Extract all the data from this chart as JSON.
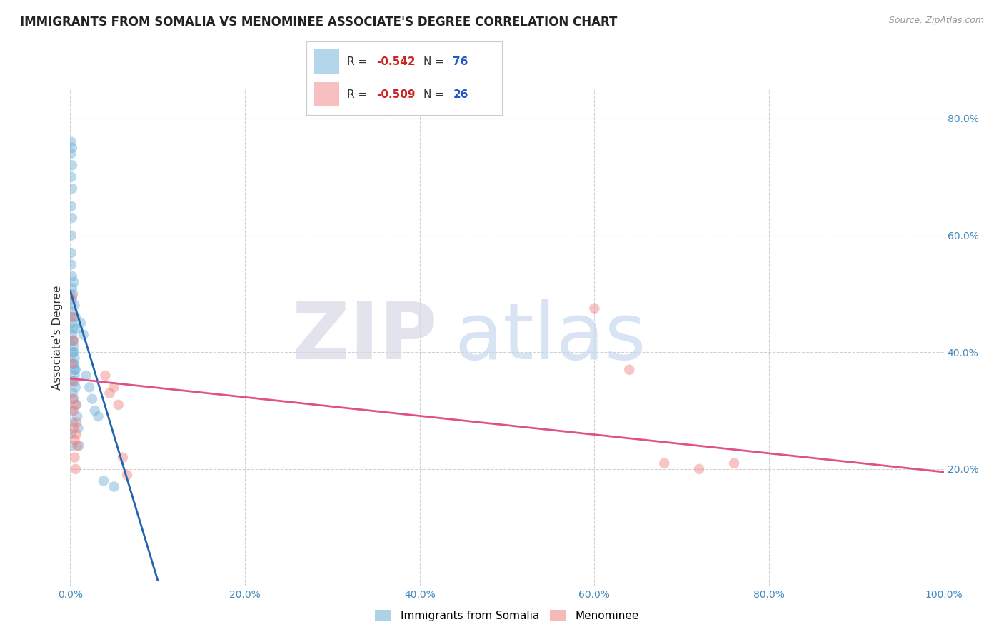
{
  "title": "IMMIGRANTS FROM SOMALIA VS MENOMINEE ASSOCIATE'S DEGREE CORRELATION CHART",
  "source": "Source: ZipAtlas.com",
  "ylabel": "Associate's Degree",
  "blue_scatter_x": [
    0.003,
    0.004,
    0.005,
    0.006,
    0.007,
    0.003,
    0.004,
    0.005,
    0.006,
    0.002,
    0.003,
    0.004,
    0.005,
    0.002,
    0.003,
    0.004,
    0.002,
    0.003,
    0.001,
    0.002,
    0.001,
    0.002,
    0.001,
    0.002,
    0.001,
    0.002,
    0.001,
    0.002,
    0.001,
    0.001,
    0.001,
    0.012,
    0.015,
    0.018,
    0.022,
    0.025,
    0.028,
    0.032,
    0.038,
    0.05,
    0.001,
    0.001,
    0.001,
    0.002,
    0.002,
    0.002,
    0.003,
    0.003,
    0.004,
    0.004,
    0.005,
    0.005,
    0.006,
    0.007,
    0.008,
    0.009,
    0.01
  ],
  "blue_scatter_y": [
    0.5,
    0.52,
    0.48,
    0.46,
    0.44,
    0.42,
    0.41,
    0.39,
    0.37,
    0.43,
    0.4,
    0.38,
    0.36,
    0.35,
    0.33,
    0.32,
    0.3,
    0.28,
    0.26,
    0.24,
    0.65,
    0.63,
    0.7,
    0.68,
    0.74,
    0.72,
    0.76,
    0.75,
    0.6,
    0.57,
    0.55,
    0.45,
    0.43,
    0.36,
    0.34,
    0.32,
    0.3,
    0.29,
    0.18,
    0.17,
    0.47,
    0.46,
    0.45,
    0.53,
    0.51,
    0.49,
    0.44,
    0.42,
    0.4,
    0.38,
    0.37,
    0.35,
    0.34,
    0.31,
    0.29,
    0.27,
    0.24
  ],
  "pink_scatter_x": [
    0.002,
    0.003,
    0.004,
    0.002,
    0.003,
    0.003,
    0.004,
    0.004,
    0.005,
    0.005,
    0.006,
    0.006,
    0.007,
    0.007,
    0.008,
    0.04,
    0.045,
    0.05,
    0.055,
    0.06,
    0.065,
    0.6,
    0.64,
    0.68,
    0.72,
    0.76
  ],
  "pink_scatter_y": [
    0.495,
    0.46,
    0.42,
    0.38,
    0.35,
    0.32,
    0.3,
    0.27,
    0.25,
    0.22,
    0.2,
    0.31,
    0.28,
    0.26,
    0.24,
    0.36,
    0.33,
    0.34,
    0.31,
    0.22,
    0.19,
    0.475,
    0.37,
    0.21,
    0.2,
    0.21
  ],
  "blue_line_x": [
    0.0,
    0.1
  ],
  "blue_line_y": [
    0.505,
    0.01
  ],
  "pink_line_x": [
    0.0,
    1.0
  ],
  "pink_line_y": [
    0.355,
    0.195
  ],
  "xlim": [
    0.0,
    1.0
  ],
  "ylim": [
    0.0,
    0.85
  ],
  "xticks": [
    0.0,
    0.2,
    0.4,
    0.6,
    0.8,
    1.0
  ],
  "xticklabels": [
    "0.0%",
    "20.0%",
    "40.0%",
    "60.0%",
    "80.0%",
    "100.0%"
  ],
  "yticks": [
    0.0,
    0.2,
    0.4,
    0.6,
    0.8
  ],
  "right_ytick_labels": [
    "",
    "20.0%",
    "40.0%",
    "60.0%",
    "80.0%"
  ],
  "scatter_size": 110,
  "scatter_alpha": 0.45,
  "blue_color": "#6baed6",
  "pink_color": "#f08080",
  "blue_line_color": "#2166ac",
  "pink_line_color": "#e0508a",
  "grid_color": "#cccccc",
  "background_color": "#ffffff",
  "title_fontsize": 12,
  "label_fontsize": 11
}
